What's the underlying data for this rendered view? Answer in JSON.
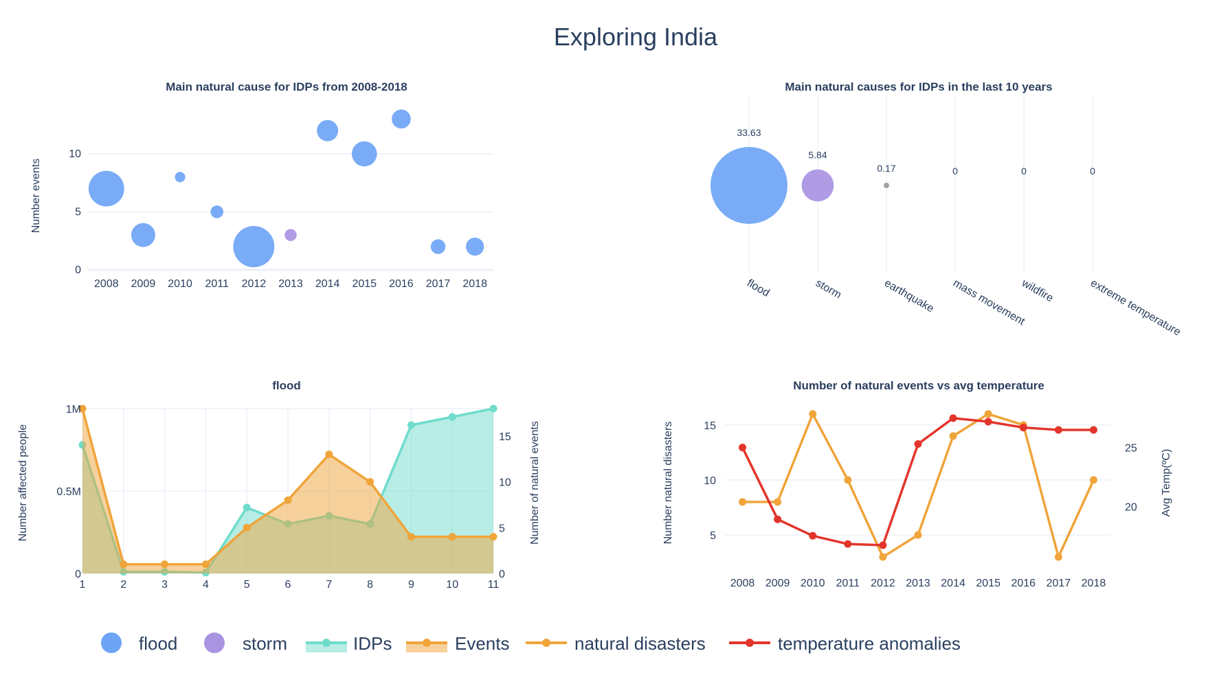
{
  "title": "Exploring India",
  "colors": {
    "flood": "#636efa",
    "storm": "#ab63fa",
    "idps": "#00cc96",
    "events": "#ef553b",
    "natural_disasters": "#ef553b",
    "temperature": "#ef553b"
  },
  "legend": {
    "items": [
      {
        "label": "flood",
        "symbol": "bubble",
        "color": "#6ea4f5"
      },
      {
        "label": "storm",
        "symbol": "bubble",
        "color": "#a994e2"
      },
      {
        "label": "IDPs",
        "symbol": "area-line",
        "color": "#6fdccc"
      },
      {
        "label": "Events",
        "symbol": "area-line",
        "color": "#f0a43a"
      },
      {
        "label": "natural disasters",
        "symbol": "line",
        "color": "#f0a43a"
      },
      {
        "label": "temperature anomalies",
        "symbol": "line",
        "color": "#e3352b"
      }
    ]
  },
  "chart_data": [
    {
      "type": "scatter",
      "subtype": "bubble",
      "title": "Main natural cause for IDPs from 2008-2018",
      "xlabel": "",
      "ylabel": "Number events",
      "categories": [
        "2008",
        "2009",
        "2010",
        "2011",
        "2012",
        "2013",
        "2014",
        "2015",
        "2016",
        "2017",
        "2018"
      ],
      "yticks": [
        0,
        5,
        10
      ],
      "ylim": [
        -0.3,
        14.5
      ],
      "points": [
        {
          "x": "2008",
          "y": 7,
          "size": 7.0,
          "cause": "flood"
        },
        {
          "x": "2009",
          "y": 3,
          "size": 3.2,
          "cause": "flood"
        },
        {
          "x": "2010",
          "y": 8,
          "size": 0.6,
          "cause": "flood"
        },
        {
          "x": "2011",
          "y": 5,
          "size": 0.9,
          "cause": "flood"
        },
        {
          "x": "2012",
          "y": 2,
          "size": 9.4,
          "cause": "flood"
        },
        {
          "x": "2013",
          "y": 3,
          "size": 0.8,
          "cause": "storm"
        },
        {
          "x": "2014",
          "y": 12,
          "size": 2.5,
          "cause": "flood"
        },
        {
          "x": "2015",
          "y": 10,
          "size": 3.5,
          "cause": "flood"
        },
        {
          "x": "2016",
          "y": 13,
          "size": 2.0,
          "cause": "flood"
        },
        {
          "x": "2017",
          "y": 2,
          "size": 1.2,
          "cause": "flood"
        },
        {
          "x": "2018",
          "y": 2,
          "size": 1.8,
          "cause": "flood"
        }
      ]
    },
    {
      "type": "scatter",
      "subtype": "bubble",
      "title": "Main natural causes for IDPs in the last 10 years",
      "categories": [
        "flood",
        "storm",
        "earthquake",
        "mass movement",
        "wildfire",
        "extreme temperature"
      ],
      "values": [
        33.63,
        5.84,
        0.17,
        0,
        0,
        0
      ],
      "value_labels": [
        "33.63",
        "5.84",
        "0.17",
        "0",
        "0",
        "0"
      ]
    },
    {
      "type": "area",
      "title": "flood",
      "ylabel": "Number affected people",
      "y2label": "Number of natural events",
      "x": [
        1,
        2,
        3,
        4,
        5,
        6,
        7,
        8,
        9,
        10,
        11
      ],
      "xticks": [
        "1",
        "2",
        "3",
        "4",
        "5",
        "6",
        "7",
        "8",
        "9",
        "10",
        "11"
      ],
      "xlim": [
        1,
        11
      ],
      "ylim": [
        0,
        1000000
      ],
      "yticks": [
        0,
        500000,
        1000000
      ],
      "ytick_labels": [
        "0",
        "0.5M",
        "1M"
      ],
      "y2lim": [
        0,
        18
      ],
      "y2ticks": [
        0,
        5,
        10,
        15
      ],
      "series": [
        {
          "name": "IDPs",
          "axis": "y",
          "values": [
            780000,
            10000,
            10000,
            5000,
            400000,
            300000,
            350000,
            300000,
            900000,
            950000,
            1000000
          ]
        },
        {
          "name": "Events",
          "axis": "y2",
          "values": [
            18,
            1,
            1,
            1,
            5,
            8,
            13,
            10,
            4,
            4,
            4
          ]
        }
      ]
    },
    {
      "type": "line",
      "title": "Number of natural events vs avg temperature",
      "ylabel": "Number natural disasters",
      "y2label": "Avg Temp(ºC)",
      "categories": [
        "2008",
        "2009",
        "2010",
        "2011",
        "2012",
        "2013",
        "2014",
        "2015",
        "2016",
        "2017",
        "2018"
      ],
      "ylim": [
        1.5,
        16.8
      ],
      "yticks": [
        5,
        10,
        15
      ],
      "y2lim": [
        14.3,
        28.6
      ],
      "y2ticks": [
        20,
        25
      ],
      "series": [
        {
          "name": "natural disasters",
          "axis": "y",
          "values": [
            8,
            8,
            16,
            10,
            3,
            5,
            14,
            16,
            15,
            3,
            10
          ]
        },
        {
          "name": "temperature anomalies",
          "axis": "y2",
          "values": [
            25.0,
            18.9,
            17.5,
            16.8,
            16.7,
            25.3,
            27.5,
            27.2,
            26.7,
            26.5,
            26.5
          ]
        }
      ]
    }
  ]
}
